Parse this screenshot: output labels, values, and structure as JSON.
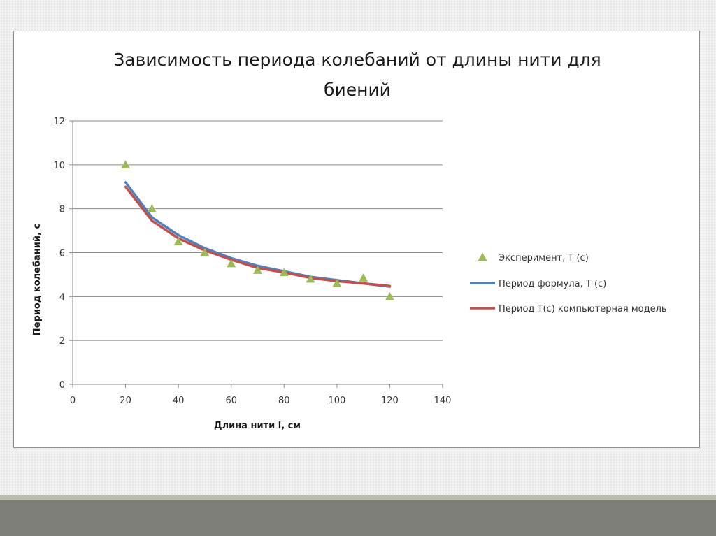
{
  "chart_data": {
    "type": "scatter",
    "title_lines": [
      "Зависимость периода колебаний от длины нити для",
      "биений"
    ],
    "xlabel": "Длина нити l, см",
    "ylabel": "Период колебаний, с",
    "xlim": [
      0,
      140
    ],
    "ylim": [
      0,
      12
    ],
    "x_ticks": [
      "0",
      "20",
      "40",
      "60",
      "80",
      "100",
      "120",
      "140"
    ],
    "y_ticks": [
      "0",
      "2",
      "4",
      "6",
      "8",
      "10",
      "12"
    ],
    "grid": "horizontal",
    "legend_position": "right",
    "series": [
      {
        "name": "Эксперимент, T (с)",
        "type": "scatter",
        "marker": "triangle",
        "color": "#9bbb59",
        "x": [
          20,
          30,
          40,
          50,
          60,
          70,
          80,
          90,
          100,
          110,
          120
        ],
        "y": [
          10,
          8,
          6.5,
          6,
          5.5,
          5.2,
          5.1,
          4.8,
          4.6,
          4.85,
          4
        ]
      },
      {
        "name": "Период формула, T (с)",
        "type": "line",
        "color": "#4f81bd",
        "x": [
          20,
          30,
          40,
          50,
          60,
          70,
          80,
          90,
          100,
          110,
          120
        ],
        "y": [
          9.2,
          7.6,
          6.8,
          6.2,
          5.75,
          5.4,
          5.15,
          4.9,
          4.75,
          4.6,
          4.45
        ]
      },
      {
        "name": "Период T(с) компьютерная модель",
        "type": "line",
        "color": "#c0504d",
        "x": [
          20,
          30,
          40,
          50,
          60,
          70,
          80,
          90,
          100,
          110,
          120
        ],
        "y": [
          9.0,
          7.45,
          6.65,
          6.1,
          5.68,
          5.3,
          5.1,
          4.85,
          4.7,
          4.6,
          4.48
        ]
      }
    ]
  }
}
